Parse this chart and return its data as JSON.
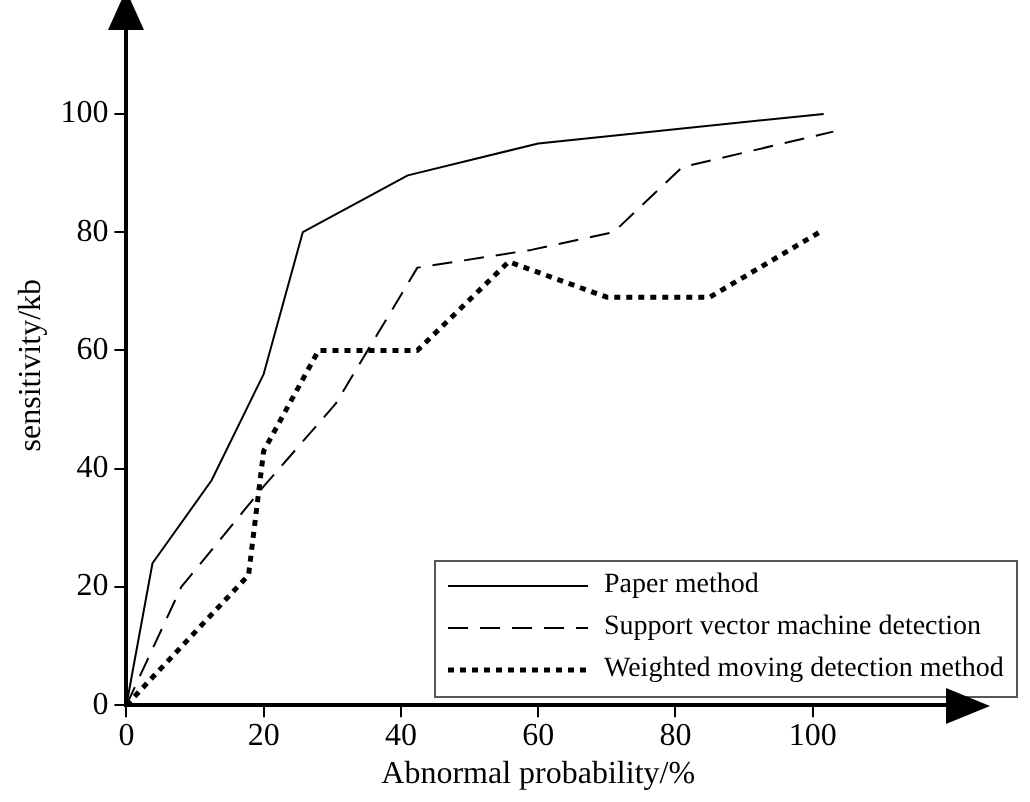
{
  "chart_data": {
    "type": "line",
    "xlabel": "Abnormal probability/%",
    "ylabel": "sensitivity/kb",
    "xlim": [
      0,
      120
    ],
    "ylim": [
      0,
      115
    ],
    "xticks": [
      0,
      20,
      40,
      60,
      80,
      100
    ],
    "yticks": [
      0,
      20,
      40,
      60,
      80,
      100
    ],
    "grid": false,
    "legend": "bottom right",
    "marker": "none",
    "series": [
      {
        "name": "Paper method",
        "color": "#000000",
        "line_style": "solid",
        "x": [
          0,
          3.8,
          12.4,
          20,
          25.7,
          41,
          60,
          101.6
        ],
        "values": [
          0,
          24,
          38,
          56,
          80,
          89.6,
          95,
          100
        ]
      },
      {
        "name": "Support vector machine detection",
        "color": "#000000",
        "line_style": "dashed",
        "x": [
          0,
          8,
          20,
          30.5,
          42.4,
          59,
          71,
          81,
          103
        ],
        "values": [
          0,
          20,
          37,
          51,
          74,
          77,
          80,
          91,
          97
        ]
      },
      {
        "name": "Weighted moving detection method",
        "color": "#000000",
        "line_style": "dotted",
        "x": [
          0,
          17.8,
          20,
          28,
          42.4,
          55.7,
          70,
          85,
          101
        ],
        "values": [
          0,
          22,
          43,
          60,
          60,
          75,
          69,
          69,
          80
        ]
      }
    ]
  }
}
